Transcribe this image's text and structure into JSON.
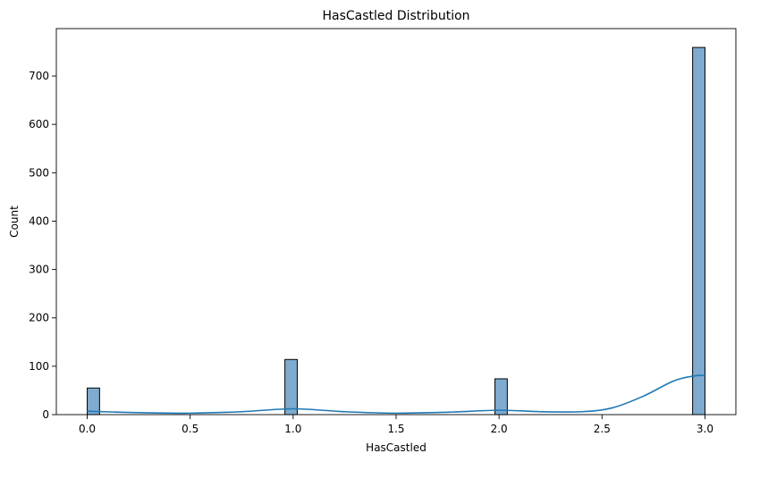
{
  "chart_data": {
    "type": "bar",
    "title": "HasCastled Distribution",
    "xlabel": "HasCastled",
    "ylabel": "Count",
    "xlim": [
      -0.15,
      3.15
    ],
    "ylim": [
      0,
      798
    ],
    "x_ticks": [
      0.0,
      0.5,
      1.0,
      1.5,
      2.0,
      2.5,
      3.0
    ],
    "x_tick_labels": [
      "0.0",
      "0.5",
      "1.0",
      "1.5",
      "2.0",
      "2.5",
      "3.0"
    ],
    "y_ticks": [
      0,
      100,
      200,
      300,
      400,
      500,
      600,
      700
    ],
    "y_tick_labels": [
      "0",
      "100",
      "200",
      "300",
      "400",
      "500",
      "600",
      "700"
    ],
    "bin_width": 0.06,
    "bars": [
      {
        "x_start": 0.0,
        "x_end": 0.06,
        "count": 55
      },
      {
        "x_start": 0.96,
        "x_end": 1.02,
        "count": 114
      },
      {
        "x_start": 1.98,
        "x_end": 2.04,
        "count": 74
      },
      {
        "x_start": 2.94,
        "x_end": 3.0,
        "count": 759
      }
    ],
    "kde": {
      "x": [
        0.0,
        0.25,
        0.5,
        0.75,
        1.0,
        1.25,
        1.5,
        1.75,
        2.0,
        2.2,
        2.4,
        2.55,
        2.7,
        2.85,
        2.95,
        3.0
      ],
      "y": [
        7,
        4,
        3,
        6,
        12,
        6,
        3,
        5,
        9,
        6,
        6,
        14,
        38,
        70,
        80,
        81
      ]
    },
    "grid": false,
    "legend": "none",
    "colors": {
      "bar_fill": "#7eabcf",
      "bar_edge": "#000000",
      "kde_line": "#1f77b4"
    }
  }
}
